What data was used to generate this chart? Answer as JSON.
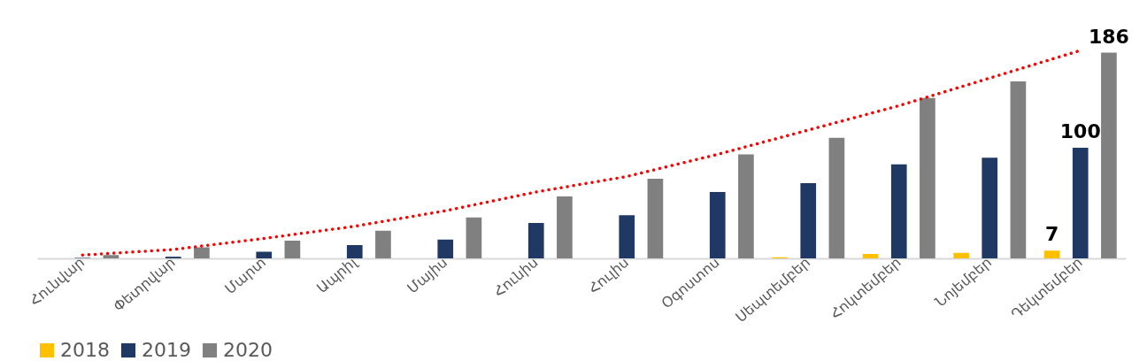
{
  "chart_data": {
    "type": "bar",
    "categories": [
      "Հունվար",
      "Փետրվար",
      "Մարտ",
      "Ապրիլ",
      "Մայիս",
      "Հունիս",
      "Հուլիս",
      "Օգոստոս",
      "Սեպտեմբեր",
      "Հոկտեմբեր",
      "Նոյեմբեր",
      "Դեկտեմբեր"
    ],
    "series": [
      {
        "name": "2018",
        "color": "#ffc000",
        "values": [
          null,
          null,
          null,
          null,
          null,
          null,
          null,
          null,
          1,
          4,
          5,
          7
        ],
        "value_labels": [
          null,
          null,
          null,
          null,
          null,
          null,
          null,
          null,
          null,
          null,
          null,
          "7"
        ]
      },
      {
        "name": "2019",
        "color": "#1f3864",
        "values": [
          0.5,
          1.5,
          6,
          12,
          17,
          32,
          39,
          60,
          68,
          85,
          91,
          100
        ],
        "value_labels": [
          null,
          null,
          null,
          null,
          null,
          null,
          null,
          null,
          null,
          null,
          null,
          "100"
        ]
      },
      {
        "name": "2020",
        "color": "#808080",
        "values": [
          3,
          10,
          16,
          25,
          37,
          56,
          72,
          94,
          109,
          145,
          160,
          186
        ],
        "value_labels": [
          null,
          null,
          null,
          null,
          null,
          null,
          null,
          null,
          null,
          null,
          null,
          "186"
        ]
      },
      {
        "type": "line",
        "color": "#ff0000",
        "line_style": "dotted",
        "values": [
          3,
          8,
          18,
          29,
          43,
          60,
          74,
          94,
          116,
          138,
          163,
          188
        ]
      }
    ],
    "legend": "bottom",
    "grid": false
  }
}
